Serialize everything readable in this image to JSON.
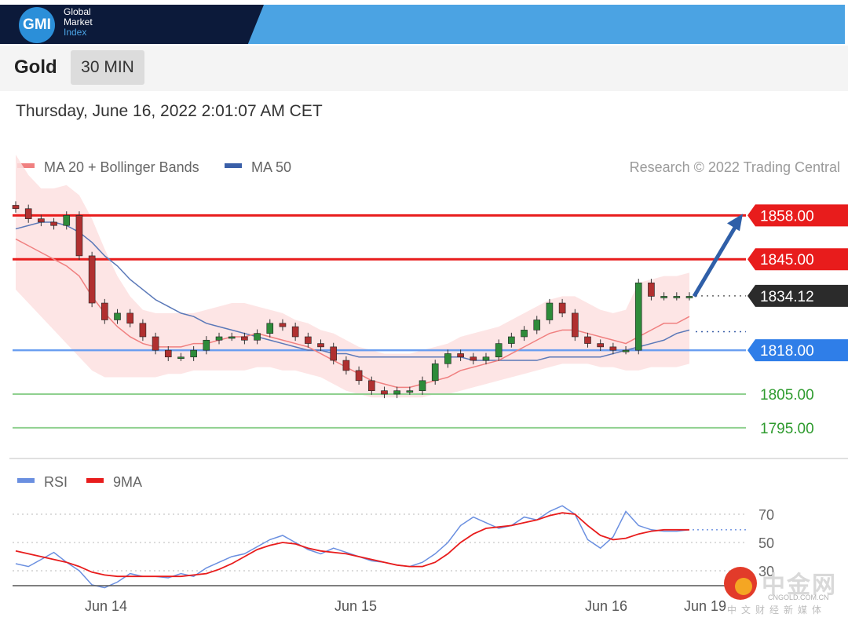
{
  "header": {
    "logo_text": "GMI",
    "brand_lines": [
      "Global",
      "Market",
      "Index"
    ]
  },
  "toolbar": {
    "symbol": "Gold",
    "timeframe": "30 MIN"
  },
  "timestamp": "Thursday, June 16, 2022 2:01:07 AM CET",
  "watermark": {
    "text": "中金网",
    "url": "CNGOLD.COM.CN",
    "sub": "中文财经新媒体"
  },
  "chart_data": [
    {
      "type": "line",
      "title": "",
      "instrument": "Gold",
      "credit": "Research © 2022 Trading Central",
      "legend": [
        {
          "name": "MA 20 + Bollinger Bands",
          "color": "#f08080"
        },
        {
          "name": "MA 50",
          "color": "#3a5fa8"
        }
      ],
      "x_ticks": [
        "Jun 14",
        "Jun 15",
        "Jun 16",
        "Jun 19"
      ],
      "ylim": [
        1788,
        1866
      ],
      "price": [
        1860,
        1857,
        1856,
        1855,
        1858,
        1846,
        1832,
        1827,
        1829,
        1826,
        1822,
        1818,
        1816,
        1816,
        1818,
        1821,
        1822,
        1822,
        1821,
        1823,
        1826,
        1825,
        1822,
        1820,
        1819,
        1815,
        1812,
        1809,
        1806,
        1805,
        1806,
        1806,
        1809,
        1814,
        1817,
        1816,
        1815,
        1816,
        1820,
        1822,
        1824,
        1827,
        1832,
        1829,
        1822,
        1820,
        1819,
        1818,
        1818,
        1838,
        1834,
        1834,
        1834,
        1834
      ],
      "ma20": [
        1851,
        1849,
        1847,
        1845,
        1843,
        1840,
        1834,
        1829,
        1825,
        1822,
        1820,
        1819,
        1819,
        1819,
        1820,
        1820,
        1821,
        1822,
        1822,
        1823,
        1822,
        1821,
        1820,
        1819,
        1817,
        1815,
        1813,
        1811,
        1809,
        1808,
        1807,
        1807,
        1808,
        1809,
        1810,
        1812,
        1813,
        1814,
        1815,
        1817,
        1819,
        1821,
        1823,
        1824,
        1824,
        1823,
        1822,
        1821,
        1820,
        1822,
        1824,
        1826,
        1826,
        1828
      ],
      "bb_upper": [
        1876,
        1870,
        1866,
        1866,
        1867,
        1864,
        1857,
        1848,
        1840,
        1834,
        1830,
        1829,
        1829,
        1829,
        1829,
        1830,
        1831,
        1832,
        1832,
        1831,
        1830,
        1829,
        1827,
        1826,
        1824,
        1823,
        1821,
        1819,
        1818,
        1817,
        1817,
        1817,
        1818,
        1819,
        1820,
        1822,
        1823,
        1824,
        1825,
        1827,
        1829,
        1831,
        1833,
        1834,
        1834,
        1832,
        1830,
        1829,
        1830,
        1838,
        1839,
        1840,
        1840,
        1841
      ],
      "bb_lower": [
        1836,
        1832,
        1828,
        1824,
        1820,
        1816,
        1812,
        1810,
        1810,
        1810,
        1810,
        1810,
        1811,
        1811,
        1812,
        1812,
        1812,
        1812,
        1812,
        1813,
        1813,
        1812,
        1812,
        1811,
        1810,
        1808,
        1806,
        1805,
        1804,
        1804,
        1804,
        1804,
        1804,
        1805,
        1805,
        1806,
        1807,
        1808,
        1809,
        1810,
        1811,
        1812,
        1813,
        1814,
        1814,
        1814,
        1813,
        1813,
        1812,
        1812,
        1813,
        1813,
        1813,
        1814
      ],
      "ma50": [
        1854,
        1855,
        1856,
        1856,
        1855,
        1853,
        1850,
        1846,
        1843,
        1839,
        1836,
        1833,
        1831,
        1829,
        1828,
        1826,
        1825,
        1824,
        1823,
        1822,
        1821,
        1820,
        1819,
        1818,
        1818,
        1817,
        1817,
        1816,
        1816,
        1816,
        1816,
        1816,
        1816,
        1816,
        1816,
        1816,
        1815,
        1815,
        1815,
        1815,
        1815,
        1815,
        1816,
        1816,
        1816,
        1816,
        1816,
        1817,
        1818,
        1819,
        1820,
        1821,
        1823,
        1824
      ],
      "levels": [
        {
          "value": 1858,
          "label": "1858.00",
          "color": "#e81c1c",
          "kind": "resistance"
        },
        {
          "value": 1845,
          "label": "1845.00",
          "color": "#e81c1c",
          "kind": "resistance"
        },
        {
          "value": 1834.12,
          "label": "1834.12",
          "color": "#2b2b2b",
          "kind": "last"
        },
        {
          "value": 1818,
          "label": "1818.00",
          "color": "#2f7ee8",
          "kind": "pivot"
        },
        {
          "value": 1805,
          "label": "1805.00",
          "color": "#2e9b2e",
          "kind": "support"
        },
        {
          "value": 1795,
          "label": "1795.00",
          "color": "#2e9b2e",
          "kind": "support"
        }
      ],
      "ma50_end_marker": 1823.5,
      "arrow": {
        "from": 1834,
        "to": 1858,
        "color": "#2f5fa8"
      }
    },
    {
      "type": "line",
      "title": "",
      "legend": [
        {
          "name": "RSI",
          "color": "#6a8fe0"
        },
        {
          "name": "9MA",
          "color": "#e81c1c"
        }
      ],
      "ylim": [
        20,
        80
      ],
      "y_ticks": [
        70,
        50,
        30
      ],
      "rsi": [
        35,
        33,
        38,
        43,
        36,
        30,
        20,
        18,
        22,
        28,
        26,
        26,
        25,
        28,
        26,
        32,
        36,
        40,
        42,
        47,
        52,
        55,
        50,
        45,
        42,
        46,
        43,
        40,
        37,
        36,
        34,
        33,
        36,
        42,
        50,
        62,
        68,
        64,
        60,
        62,
        68,
        66,
        72,
        76,
        70,
        52,
        46,
        54,
        72,
        62,
        59,
        58,
        58,
        59
      ],
      "ma9": [
        44,
        42,
        40,
        38,
        36,
        33,
        29,
        27,
        26,
        26,
        26,
        26,
        26,
        26,
        27,
        28,
        31,
        35,
        40,
        45,
        48,
        50,
        49,
        46,
        44,
        43,
        42,
        40,
        38,
        36,
        34,
        33,
        33,
        36,
        42,
        50,
        56,
        60,
        61,
        62,
        64,
        66,
        69,
        71,
        70,
        62,
        55,
        52,
        53,
        56,
        58,
        59,
        59,
        59
      ]
    }
  ]
}
